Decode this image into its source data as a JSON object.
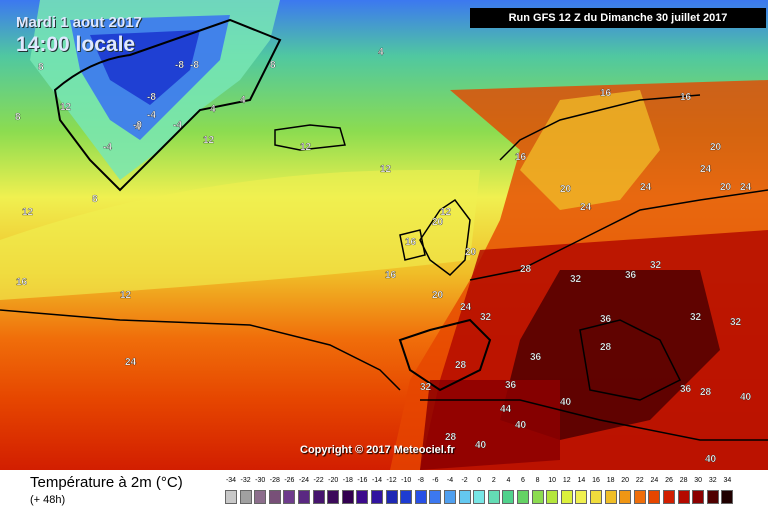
{
  "header": {
    "date": "Mardi 1 aout 2017",
    "time": "14:00 locale",
    "run": "Run GFS 12 Z du Dimanche 30 juillet 2017",
    "copyright": "Copyright © 2017 Meteociel.fr"
  },
  "legend": {
    "title": "Température à 2m (°C)",
    "subtitle": "(+ 48h)",
    "ticks": [
      "-34",
      "-32",
      "-30",
      "-28",
      "-26",
      "-24",
      "-22",
      "-20",
      "-18",
      "-16",
      "-14",
      "-12",
      "-10",
      "-8",
      "-6",
      "-4",
      "-2",
      "0",
      "2",
      "4",
      "6",
      "8",
      "10",
      "12",
      "14",
      "16",
      "18",
      "20",
      "22",
      "24",
      "26",
      "28",
      "30",
      "32",
      "34"
    ],
    "colors": [
      "#c8c8c8",
      "#a0a0a0",
      "#8c6e8c",
      "#785078",
      "#6e3c8c",
      "#5a2882",
      "#46146e",
      "#3c0a5a",
      "#320050",
      "#3c0a8c",
      "#3214a0",
      "#1e28b4",
      "#1e3cd2",
      "#2850e6",
      "#3c78f0",
      "#50a0f0",
      "#64c8f0",
      "#78e6e6",
      "#64dcb4",
      "#50d28c",
      "#64d264",
      "#8cdc50",
      "#b4e63c",
      "#dcf03c",
      "#f0f050",
      "#f0dc3c",
      "#f0be28",
      "#f09614",
      "#f06e0a",
      "#e64600",
      "#d21e00",
      "#b40a00",
      "#8c0000",
      "#500000",
      "#200000"
    ]
  },
  "map_labels": [
    {
      "t": "-8"
    },
    {
      "t": "-8"
    },
    {
      "t": "-8"
    },
    {
      "t": "-4"
    },
    {
      "t": "-4"
    },
    {
      "t": "-4"
    },
    {
      "t": "-0"
    },
    {
      "t": "4"
    },
    {
      "t": "4"
    },
    {
      "t": "4"
    },
    {
      "t": "4"
    },
    {
      "t": "8"
    },
    {
      "t": "8"
    },
    {
      "t": "8"
    },
    {
      "t": "8"
    },
    {
      "t": "12"
    },
    {
      "t": "12"
    },
    {
      "t": "12"
    },
    {
      "t": "12"
    },
    {
      "t": "12"
    },
    {
      "t": "12"
    },
    {
      "t": "12"
    },
    {
      "t": "16"
    },
    {
      "t": "16"
    },
    {
      "t": "16"
    },
    {
      "t": "16"
    },
    {
      "t": "16"
    },
    {
      "t": "16"
    },
    {
      "t": "20"
    },
    {
      "t": "20"
    },
    {
      "t": "20"
    },
    {
      "t": "20"
    },
    {
      "t": "20"
    },
    {
      "t": "20"
    },
    {
      "t": "24"
    },
    {
      "t": "24"
    },
    {
      "t": "24"
    },
    {
      "t": "24"
    },
    {
      "t": "24"
    },
    {
      "t": "24"
    },
    {
      "t": "28"
    },
    {
      "t": "28"
    },
    {
      "t": "28"
    },
    {
      "t": "28"
    },
    {
      "t": "28"
    },
    {
      "t": "32"
    },
    {
      "t": "32"
    },
    {
      "t": "32"
    },
    {
      "t": "32"
    },
    {
      "t": "32"
    },
    {
      "t": "32"
    },
    {
      "t": "36"
    },
    {
      "t": "36"
    },
    {
      "t": "36"
    },
    {
      "t": "36"
    },
    {
      "t": "36"
    },
    {
      "t": "40"
    },
    {
      "t": "40"
    },
    {
      "t": "40"
    },
    {
      "t": "40"
    },
    {
      "t": "40"
    },
    {
      "t": "44"
    }
  ]
}
